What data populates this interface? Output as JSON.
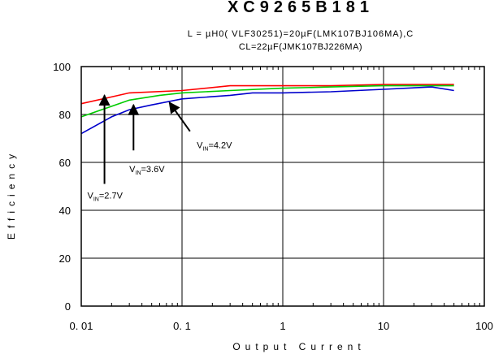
{
  "chart_data": {
    "type": "line",
    "title": "XC9265B181",
    "subtitle_1": "L = µH0( VLF30251)=20µF(LMK107BJ106MA),C",
    "subtitle_2": "CL=22µF(JMK107BJ226MA)",
    "xlabel": "Output Current",
    "ylabel": "Efficiency",
    "x_scale": "log",
    "xlim": [
      0.01,
      100
    ],
    "ylim": [
      0,
      100
    ],
    "x_ticks": [
      0.01,
      0.1,
      1,
      10,
      100
    ],
    "x_tick_labels": [
      "0. 01",
      "0. 1",
      "1",
      "10",
      "100"
    ],
    "y_ticks": [
      0,
      20,
      40,
      60,
      80,
      100
    ],
    "y_tick_labels": [
      "0",
      "20",
      "40",
      "60",
      "80",
      "100"
    ],
    "grid": true,
    "series": [
      {
        "name": "VIN=4.2V",
        "color": "#ff0000",
        "x": [
          0.01,
          0.03,
          0.1,
          0.3,
          1,
          3,
          10,
          30,
          50
        ],
        "y": [
          84.5,
          89,
          90,
          92,
          92,
          92,
          92.5,
          92.5,
          92.5
        ]
      },
      {
        "name": "VIN=3.6V",
        "color": "#00cc00",
        "x": [
          0.01,
          0.03,
          0.06,
          0.1,
          0.3,
          1,
          3,
          10,
          30,
          50
        ],
        "y": [
          79,
          86,
          88,
          89,
          90,
          91,
          91.5,
          92,
          92,
          92
        ]
      },
      {
        "name": "VIN=2.7V",
        "color": "#0000cc",
        "x": [
          0.01,
          0.02,
          0.03,
          0.05,
          0.1,
          0.3,
          0.5,
          1,
          3,
          10,
          30,
          50
        ],
        "y": [
          72,
          79,
          82,
          84,
          86.5,
          88,
          89,
          89,
          89.5,
          90.5,
          91.5,
          90
        ]
      }
    ],
    "annotations": [
      {
        "prefix": "V",
        "sub": "IN",
        "suffix": "=4.2V",
        "label_x": 0.14,
        "label_y": 66,
        "arrow_from": [
          0.12,
          73
        ],
        "arrow_to": [
          0.075,
          85
        ]
      },
      {
        "prefix": "V",
        "sub": "IN",
        "suffix": "=3.6V",
        "label_x": 0.03,
        "label_y": 56,
        "arrow_from": [
          0.033,
          65
        ],
        "arrow_to": [
          0.033,
          84
        ]
      },
      {
        "prefix": "V",
        "sub": "IN",
        "suffix": "=2.7V",
        "label_x": 0.0115,
        "label_y": 45,
        "arrow_from": [
          0.017,
          51
        ],
        "arrow_to": [
          0.017,
          88
        ]
      }
    ]
  }
}
